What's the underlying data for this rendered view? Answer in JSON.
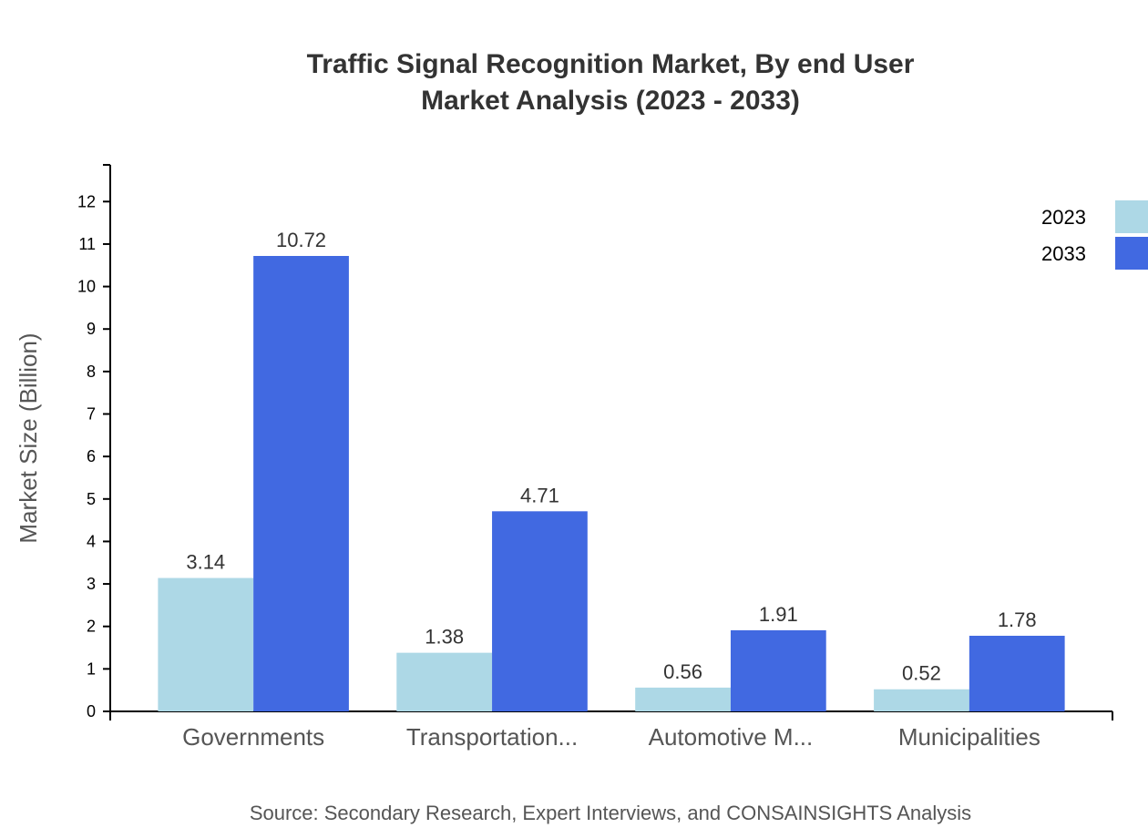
{
  "chart_data": {
    "type": "bar",
    "title": "Traffic Signal Recognition Market, By end User",
    "subtitle": "Market Analysis (2023 - 2033)",
    "xlabel": "",
    "ylabel": "Market Size (Billion)",
    "categories": [
      "Governments",
      "Transportation...",
      "Automotive M...",
      "Municipalities"
    ],
    "series": [
      {
        "name": "2023",
        "color": "#add8e6",
        "values": [
          3.14,
          1.38,
          0.56,
          0.52
        ]
      },
      {
        "name": "2033",
        "color": "#4169e1",
        "values": [
          10.72,
          4.71,
          1.91,
          1.78
        ]
      }
    ],
    "ylim": [
      0,
      12.864
    ],
    "yticks": [
      0,
      1,
      2,
      3,
      4,
      5,
      6,
      7,
      8,
      9,
      10,
      11,
      12
    ],
    "grid": false,
    "legend": "top-right",
    "source": "Source: Secondary Research, Expert Interviews, and CONSAINSIGHTS Analysis"
  }
}
